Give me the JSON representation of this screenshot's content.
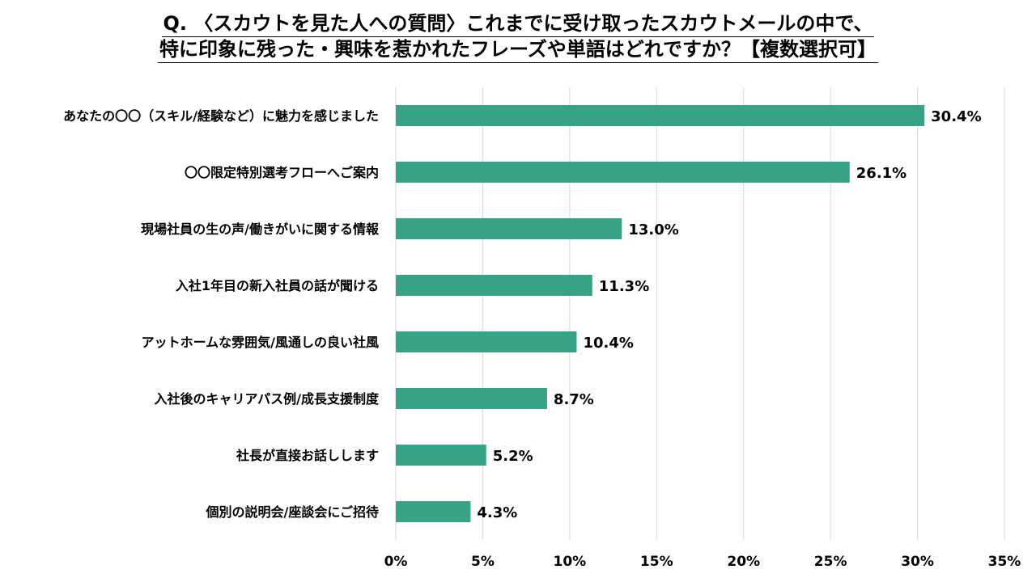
{
  "title": {
    "line1": "Q. 〈スカウトを見た人への質問〉これまでに受け取ったスカウトメールの中で、",
    "line2": "特に印象に残った・興味を惹かれたフレーズや単語はどれですか？【複数選択可】"
  },
  "chart_data": {
    "type": "bar",
    "orientation": "horizontal",
    "categories": [
      "あなたの〇〇（スキル/経験など）に魅力を感じました",
      "〇〇限定特別選考フローへご案内",
      "現場社員の生の声/働きがいに関する情報",
      "入社1年目の新入社員の話が聞ける",
      "アットホームな雰囲気/風通しの良い社風",
      "入社後のキャリアパス例/成長支援制度",
      "社長が直接お話しします",
      "個別の説明会/座談会にご招待"
    ],
    "values": [
      30.4,
      26.1,
      13.0,
      11.3,
      10.4,
      8.7,
      5.2,
      4.3
    ],
    "value_labels": [
      "30.4%",
      "26.1%",
      "13.0%",
      "11.3%",
      "10.4%",
      "8.7%",
      "5.2%",
      "4.3%"
    ],
    "xlim": [
      0,
      35
    ],
    "ticks": [
      0,
      5,
      10,
      15,
      20,
      25,
      30,
      35
    ],
    "tick_labels": [
      "0%",
      "5%",
      "10%",
      "15%",
      "20%",
      "25%",
      "30%",
      "35%"
    ],
    "grid": "vertical",
    "bar_color": "#36a286",
    "grid_color": "#d9d9d9"
  }
}
